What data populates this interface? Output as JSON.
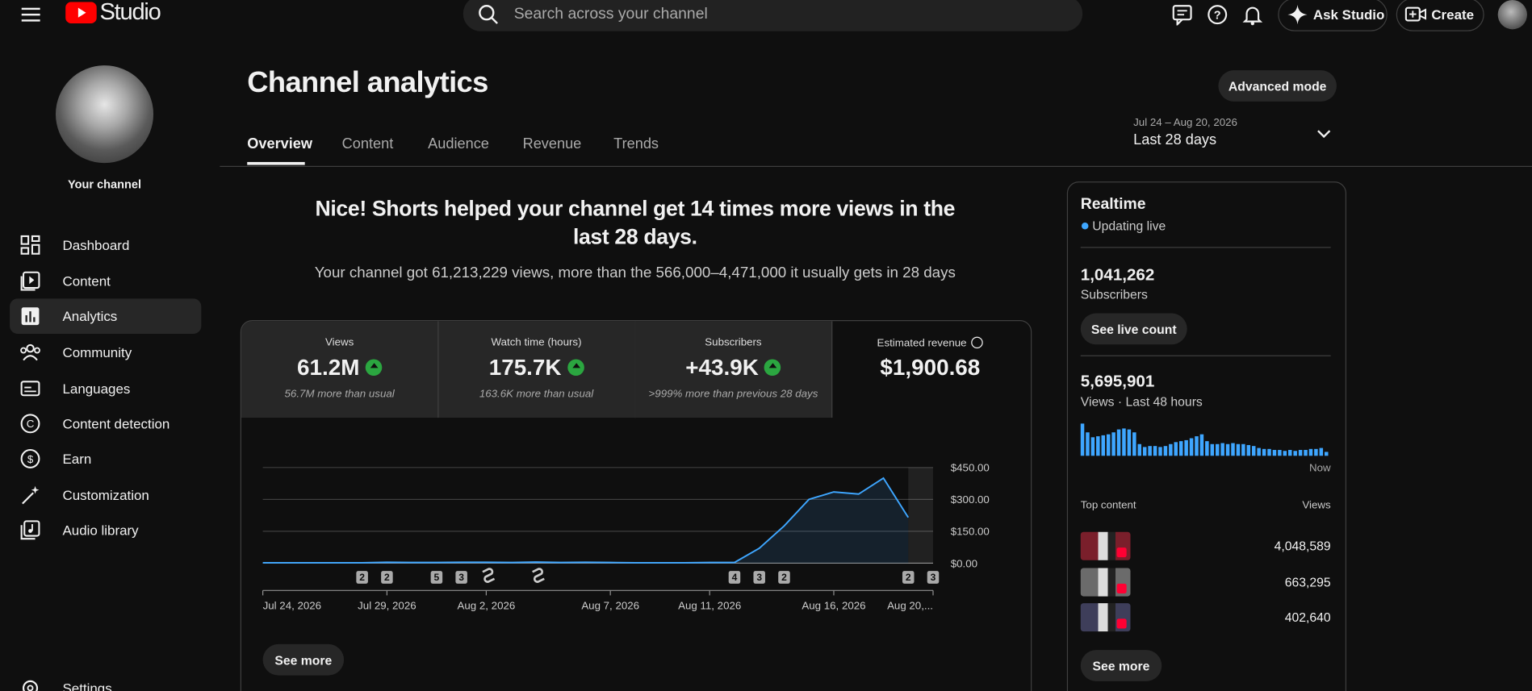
{
  "header": {
    "logo": "Studio",
    "search_placeholder": "Search across your channel",
    "ask_studio": "Ask Studio",
    "create": "Create"
  },
  "sidebar": {
    "channel": "Your channel",
    "nav": [
      "Dashboard",
      "Content",
      "Analytics",
      "Community",
      "Languages",
      "Content detection",
      "Earn",
      "Customization",
      "Audio library"
    ],
    "settings": "Settings"
  },
  "page": {
    "title": "Channel analytics",
    "advanced_mode": "Advanced mode",
    "tabs": [
      "Overview",
      "Content",
      "Audience",
      "Revenue",
      "Trends"
    ],
    "date_range": "Jul 24 – Aug 20, 2026",
    "period": "Last 28 days"
  },
  "summary": {
    "headline": "Nice! Shorts helped your channel get 14 times more views in the last 28 days.",
    "detail": "Your channel got 61,213,229 views, more than the 566,000–4,471,000 it usually gets in 28 days"
  },
  "metrics": [
    {
      "label": "Views",
      "value": "61.2M",
      "note": "56.7M more than usual"
    },
    {
      "label": "Watch time (hours)",
      "value": "175.7K",
      "note": "163.6K more than usual"
    },
    {
      "label": "Subscribers",
      "value": "+43.9K",
      "note": ">999% more than previous 28 days"
    },
    {
      "label": "Estimated revenue",
      "value": "$1,900.68"
    }
  ],
  "chart_data": {
    "type": "line",
    "categories": [
      "Jul 24, 2026",
      null,
      null,
      null,
      null,
      "Jul 29, 2026",
      null,
      null,
      null,
      "Aug 2, 2026",
      null,
      null,
      null,
      null,
      "Aug 7, 2026",
      null,
      null,
      null,
      "Aug 11, 2026",
      null,
      null,
      null,
      null,
      "Aug 16, 2026",
      null,
      null,
      null,
      "Aug 20,..."
    ],
    "values": [
      2,
      2,
      2,
      2,
      2,
      4,
      3,
      3,
      4,
      4,
      3,
      5,
      3,
      4,
      3,
      2,
      2,
      2,
      3,
      3,
      70,
      175,
      300,
      335,
      325,
      400,
      215,
      null
    ],
    "color": "#3ea6ff",
    "ylim": [
      0,
      450
    ],
    "yticks": [
      {
        "value": 0,
        "label": "$0.00"
      },
      {
        "value": 150,
        "label": "$150.00"
      },
      {
        "value": 300,
        "label": "$300.00"
      },
      {
        "value": 450,
        "label": "$450.00"
      }
    ],
    "grid": true,
    "markers": [
      {
        "index": 4,
        "label": "2"
      },
      {
        "index": 5,
        "label": "2"
      },
      {
        "index": 7,
        "label": "5"
      },
      {
        "index": 8,
        "label": "3"
      },
      {
        "index": 19,
        "label": "4"
      },
      {
        "index": 20,
        "label": "3"
      },
      {
        "index": 21,
        "label": "2"
      },
      {
        "index": 26,
        "label": "2"
      },
      {
        "index": 27,
        "label": "3"
      }
    ]
  },
  "see_more": "See more",
  "realtime": {
    "title": "Realtime",
    "status": "Updating live",
    "subscribers": "1,041,262",
    "subscribers_label": "Subscribers",
    "live_count": "See live count",
    "views": "5,695,901",
    "views_label": "Views · Last 48 hours",
    "chart": {
      "type": "bar",
      "color": "#3ea6ff",
      "x_label": "Now",
      "values": [
        33,
        24,
        19,
        20,
        21,
        22,
        24,
        27,
        28,
        27,
        24,
        12,
        9,
        10,
        10,
        9,
        10,
        12,
        14,
        15,
        16,
        18,
        20,
        22,
        15,
        12,
        12,
        13,
        12,
        13,
        12,
        12,
        11,
        10,
        8,
        7,
        7,
        6,
        6,
        5,
        6,
        5,
        6,
        6,
        7,
        7,
        8,
        4
      ]
    },
    "top_content": {
      "title": "Top content",
      "column": "Views",
      "rows": [
        "4,048,589",
        "663,295",
        "402,640"
      ]
    },
    "see_more": "See more"
  }
}
